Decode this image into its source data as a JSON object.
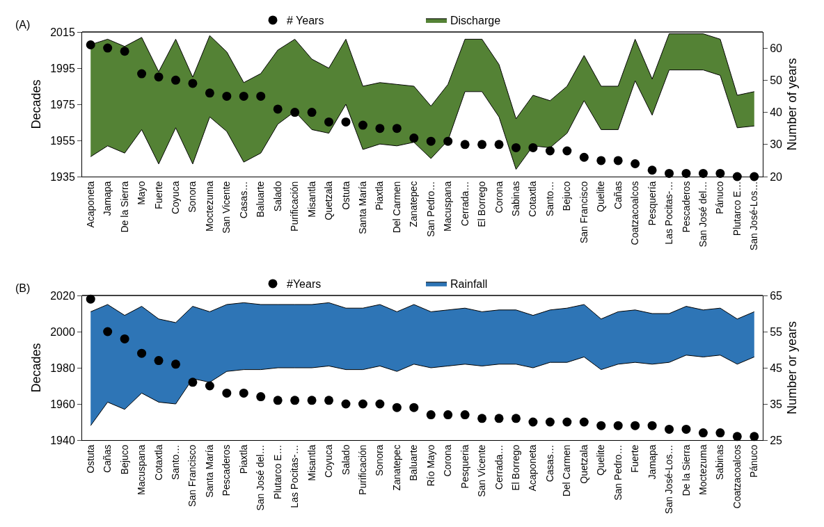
{
  "chart_data": [
    {
      "type": "area",
      "title": "(A)",
      "ylabel": "Decades",
      "y2label": "Number of years",
      "legend": "top",
      "grid": false,
      "categories": [
        "Acaponeta",
        "Jamapa",
        "De la Sierra",
        "Mayo",
        "Fuerte",
        "Coyuca",
        "Sonora",
        "Moctezuma",
        "San Vicente",
        "Casas…",
        "Baluarte",
        "Salado",
        "Purificación",
        "Misantla",
        "Quetzala",
        "Ostuta",
        "Santa María",
        "Piaxtla",
        "Del Carmen",
        "Zanatepec",
        "San Pedro…",
        "Macuspana",
        "Cerrada…",
        "El Borrego",
        "Corona",
        "Sabinas",
        "Cotaxtla",
        "Santo…",
        "Bejuco",
        "San Francisco",
        "Quelite",
        "Cañas",
        "Coatzacoalcos",
        "Pesquería",
        "Las Pocitas-…",
        "Pescaderos",
        "San José del…",
        "Pánuco",
        "Plutarco E…",
        "San José-Los…"
      ],
      "ylim": [
        1935,
        2015
      ],
      "yticks": [
        1935,
        1955,
        1975,
        1995,
        2015
      ],
      "y2lim": [
        20,
        65
      ],
      "y2ticks": [
        20,
        30,
        40,
        50,
        60
      ],
      "series": [
        {
          "type": "line",
          "color": "#000000",
          "values": [
            1946,
            1952,
            1948,
            1961,
            1942,
            1962,
            1942,
            1968,
            1960,
            1943,
            1948,
            1964,
            1971,
            1961,
            1959,
            1975,
            1950,
            1953,
            1952,
            1954,
            1945,
            1955,
            1982,
            1982,
            1968,
            1939,
            1952,
            1951,
            1959,
            1977,
            1961,
            1961,
            1988,
            1969,
            1994,
            1994,
            1994,
            1991,
            1962,
            1963
          ]
        },
        {
          "name": "Discharge",
          "color": "#548235",
          "values": [
            2008,
            2011,
            2007,
            2012,
            1993,
            2011,
            1990,
            2013,
            2004,
            1987,
            1992,
            2005,
            2011,
            2000,
            1995,
            2011,
            1985,
            1987,
            1986,
            1985,
            1974,
            1986,
            2011,
            2011,
            1997,
            1967,
            1980,
            1977,
            1985,
            2002,
            1985,
            1985,
            2011,
            1989,
            2014,
            2014,
            2014,
            2011,
            1980,
            1982
          ]
        },
        {
          "name": "# Years",
          "type": "scatter",
          "axis": "y2",
          "marker": "circle",
          "color": "#000000",
          "values": [
            61,
            60,
            59,
            52,
            51,
            50,
            49,
            46,
            45,
            45,
            45,
            41,
            40,
            40,
            37,
            37,
            36,
            35,
            35,
            32,
            31,
            31,
            30,
            30,
            30,
            29,
            29,
            28,
            28,
            26,
            25,
            25,
            24,
            22,
            21,
            21,
            21,
            21,
            20,
            20
          ]
        }
      ]
    },
    {
      "type": "area",
      "title": "(B)",
      "ylabel": "Decades",
      "y2label": "Number or years",
      "legend": "top",
      "grid": false,
      "categories": [
        "Ostuta",
        "Cañas",
        "Bejuco",
        "Macuspana",
        "Cotaxtla",
        "Santo…",
        "San Francisco",
        "Santa María",
        "Pescaderos",
        "Piaxtla",
        "San José del…",
        "Plutarco E…",
        "Las Pocitas-…",
        "Misantla",
        "Coyuca",
        "Salado",
        "Purificación",
        "Sonora",
        "Zanatepec",
        "Baluarte",
        "Río Mayo",
        "Corona",
        "Pesqueria",
        "San Vicente",
        "Cerrada…",
        "El Borrego",
        "Acaponeta",
        "Casas…",
        "Del Carmen",
        "Quetzala",
        "Quelite",
        "San Pedro…",
        "Fuerte",
        "Jamapa",
        "San José-Los…",
        "De la Sierra",
        "Moctezuma",
        "Sabinas",
        "Coatzacoalcos",
        "Pánuco"
      ],
      "ylim": [
        1940,
        2020
      ],
      "yticks": [
        1940,
        1960,
        1980,
        2000,
        2020
      ],
      "y2lim": [
        25,
        65
      ],
      "y2ticks": [
        25,
        35,
        45,
        55,
        65
      ],
      "series": [
        {
          "type": "line",
          "color": "#000000",
          "values": [
            1948,
            1961,
            1957,
            1966,
            1961,
            1960,
            1974,
            1972,
            1978,
            1979,
            1979,
            1980,
            1980,
            1980,
            1981,
            1979,
            1979,
            1981,
            1978,
            1982,
            1980,
            1981,
            1982,
            1981,
            1982,
            1982,
            1980,
            1983,
            1983,
            1986,
            1979,
            1982,
            1983,
            1982,
            1983,
            1987,
            1986,
            1987,
            1982,
            1986
          ]
        },
        {
          "name": "Rainfall",
          "color": "#2e75b6",
          "values": [
            2011,
            2015,
            2009,
            2014,
            2007,
            2005,
            2014,
            2011,
            2015,
            2016,
            2015,
            2015,
            2015,
            2015,
            2016,
            2013,
            2013,
            2015,
            2011,
            2015,
            2011,
            2012,
            2013,
            2011,
            2012,
            2012,
            2009,
            2012,
            2013,
            2015,
            2007,
            2011,
            2012,
            2010,
            2010,
            2014,
            2012,
            2013,
            2007,
            2011
          ]
        },
        {
          "name": "#Years",
          "type": "scatter",
          "axis": "y2",
          "marker": "circle",
          "color": "#000000",
          "values": [
            64,
            55,
            53,
            49,
            47,
            46,
            41,
            40,
            38,
            38,
            37,
            36,
            36,
            36,
            36,
            35,
            35,
            35,
            34,
            34,
            32,
            32,
            32,
            31,
            31,
            31,
            30,
            30,
            30,
            30,
            29,
            29,
            29,
            29,
            28,
            28,
            27,
            27,
            26,
            26
          ]
        }
      ]
    }
  ]
}
